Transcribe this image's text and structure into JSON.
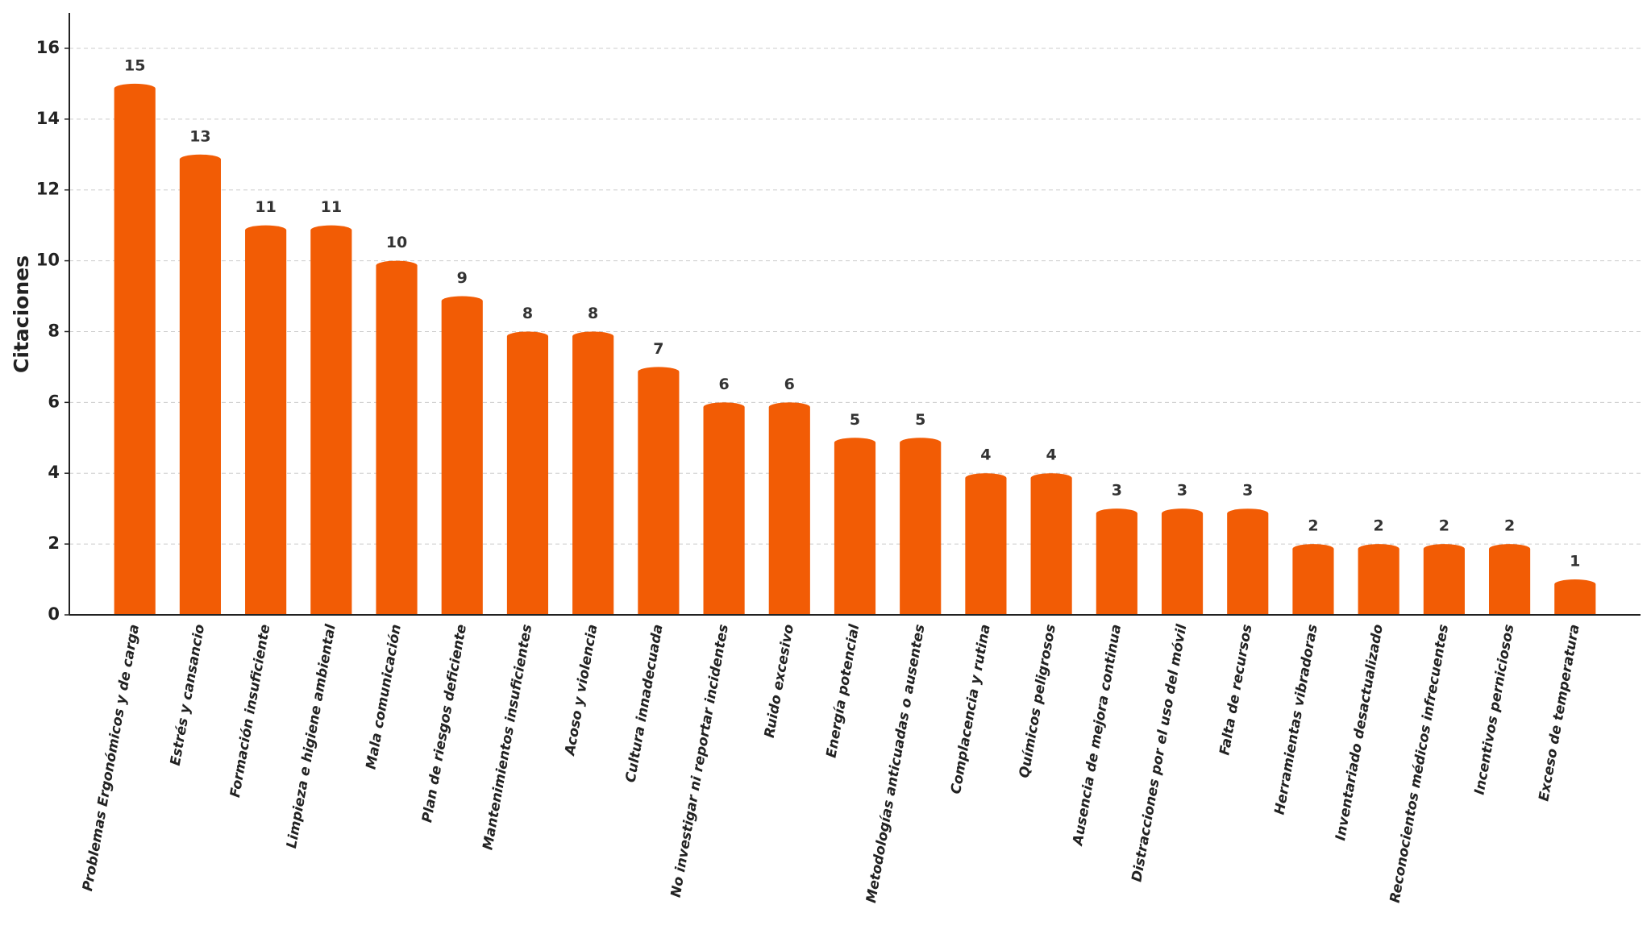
{
  "chart_data": {
    "type": "bar",
    "y_label": "Citaciones",
    "categories": [
      "Problemas Ergonómicos y de carga",
      "Estrés y cansancio",
      "Formación insuficiente",
      "Limpieza e higiene ambiental",
      "Mala comunicación",
      "Plan de riesgos deficiente",
      "Mantenimientos insuficientes",
      "Acoso y violencia",
      "Cultura innadecuada",
      "No investigar ni reportar incidentes",
      "Ruido excesivo",
      "Energía potencial",
      "Metodologías anticuadas o ausentes",
      "Complacencia y rutina",
      "Químicos peligrosos",
      "Ausencia de mejora continua",
      "Distracciones por el uso del móvil",
      "Falta de recursos",
      "Herramientas vibradoras",
      "Inventariado desactualizado",
      "Reconocientos médicos infrecuentes",
      "Incentivos perniciosos",
      "Exceso de temperatura"
    ],
    "values": [
      15,
      13,
      11,
      11,
      10,
      9,
      8,
      8,
      7,
      6,
      6,
      5,
      5,
      4,
      4,
      3,
      3,
      3,
      2,
      2,
      2,
      2,
      1
    ],
    "color": "#f25c05",
    "ylim": [
      0,
      17
    ],
    "yticks": [
      0,
      2,
      4,
      6,
      8,
      10,
      12,
      14,
      16
    ],
    "grid": true
  }
}
